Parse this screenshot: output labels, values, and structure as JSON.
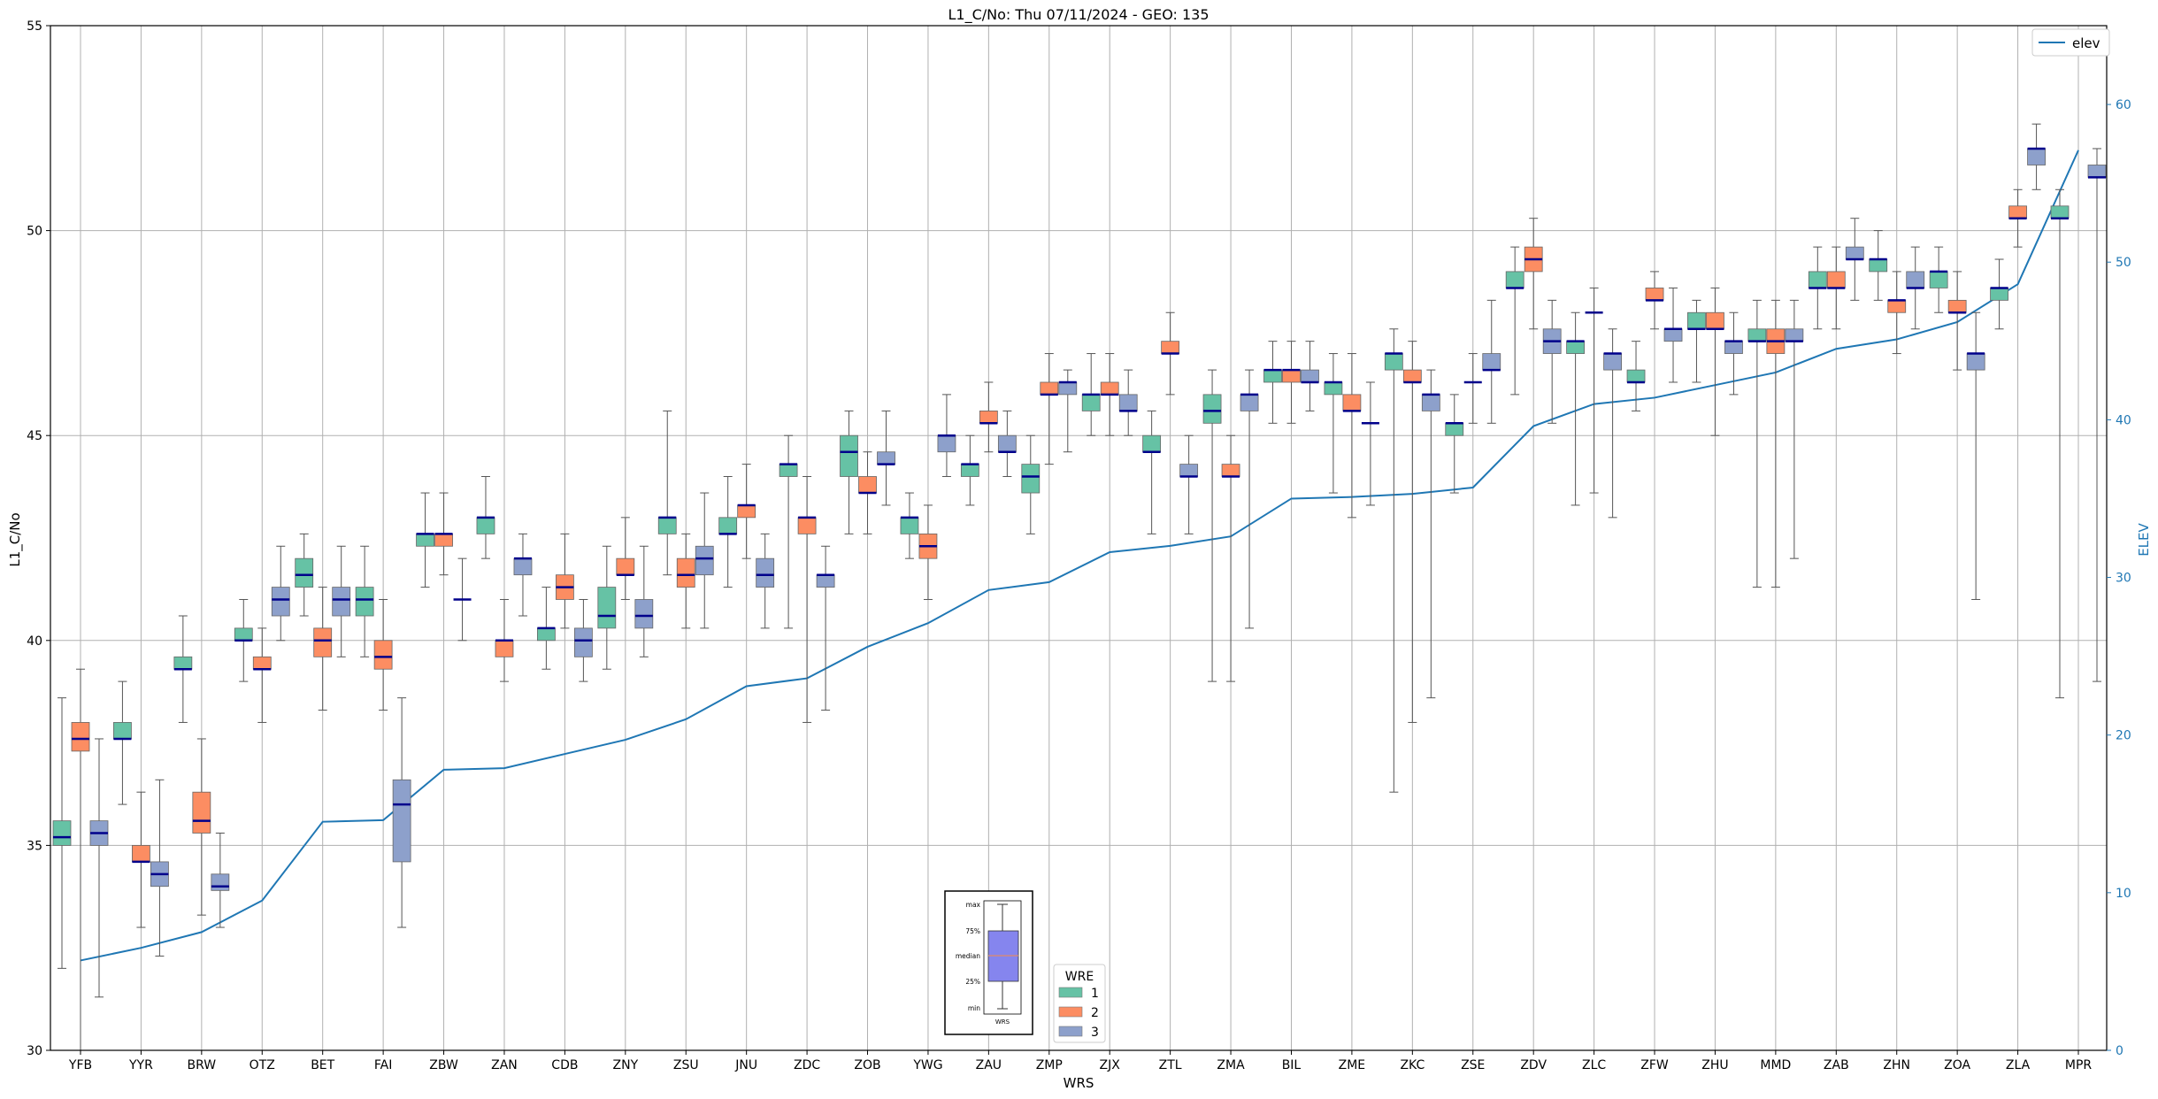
{
  "chart_data": {
    "type": "boxplot",
    "title": "L1_C/No: Thu 07/11/2024 - GEO: 135",
    "xlabel": "WRS",
    "ylabel": "L1_C/No",
    "y2label": "ELEV",
    "ylim": [
      30,
      55
    ],
    "y2lim": [
      0,
      65
    ],
    "yticks": [
      30,
      35,
      40,
      45,
      50,
      55
    ],
    "y2ticks": [
      0,
      10,
      20,
      30,
      40,
      50,
      60
    ],
    "grid": true,
    "categories": [
      "YFB",
      "YYR",
      "BRW",
      "OTZ",
      "BET",
      "FAI",
      "ZBW",
      "ZAN",
      "CDB",
      "ZNY",
      "ZSU",
      "JNU",
      "ZDC",
      "ZOB",
      "YWG",
      "ZAU",
      "ZMP",
      "ZJX",
      "ZTL",
      "ZMA",
      "BIL",
      "ZME",
      "ZKC",
      "ZSE",
      "ZDV",
      "ZLC",
      "ZFW",
      "ZHU",
      "MMD",
      "ZAB",
      "ZHN",
      "ZOA",
      "ZLA",
      "MPR"
    ],
    "colors": {
      "wre1": "#66c2a5",
      "wre2": "#fc8d62",
      "wre3": "#8da0cb",
      "median": "#00008b",
      "elev": "#1f77b4",
      "grid": "#b0b0b0",
      "whisker": "#555555"
    },
    "box_legend": {
      "title": "WRE",
      "placement": "bottom-center",
      "entries": [
        "1",
        "2",
        "3"
      ]
    },
    "line_legend": {
      "placement": "top-right",
      "entries": [
        "elev"
      ]
    },
    "key_inset": {
      "labels": [
        "max",
        "75%",
        "median",
        "25%",
        "min"
      ],
      "xlabel": "WRS"
    },
    "elev_series": {
      "name": "elev",
      "values": [
        5.7,
        6.5,
        7.5,
        9.5,
        14.5,
        14.6,
        17.8,
        17.9,
        18.8,
        19.7,
        21.0,
        23.1,
        23.6,
        25.6,
        27.1,
        29.2,
        29.7,
        31.6,
        32.0,
        32.6,
        35.0,
        35.1,
        35.3,
        35.7,
        39.6,
        41.0,
        41.4,
        42.2,
        43.0,
        44.5,
        45.1,
        46.2,
        48.6,
        57.1
      ]
    },
    "boxes": [
      {
        "wrs": "YFB",
        "wre": 1,
        "min": 32.0,
        "q1": 35.0,
        "median": 35.2,
        "q3": 35.6,
        "max": 38.6
      },
      {
        "wrs": "YFB",
        "wre": 2,
        "min": 30.0,
        "q1": 37.3,
        "median": 37.6,
        "q3": 38.0,
        "max": 39.3
      },
      {
        "wrs": "YFB",
        "wre": 3,
        "min": 31.3,
        "q1": 35.0,
        "median": 35.3,
        "q3": 35.6,
        "max": 37.6
      },
      {
        "wrs": "YYR",
        "wre": 1,
        "min": 36.0,
        "q1": 37.6,
        "median": 37.6,
        "q3": 38.0,
        "max": 39.0
      },
      {
        "wrs": "YYR",
        "wre": 2,
        "min": 33.0,
        "q1": 34.6,
        "median": 34.6,
        "q3": 35.0,
        "max": 36.3
      },
      {
        "wrs": "YYR",
        "wre": 3,
        "min": 32.3,
        "q1": 34.0,
        "median": 34.3,
        "q3": 34.6,
        "max": 36.6
      },
      {
        "wrs": "BRW",
        "wre": 1,
        "min": 38.0,
        "q1": 39.3,
        "median": 39.3,
        "q3": 39.6,
        "max": 40.6
      },
      {
        "wrs": "BRW",
        "wre": 2,
        "min": 33.3,
        "q1": 35.3,
        "median": 35.6,
        "q3": 36.3,
        "max": 37.6
      },
      {
        "wrs": "BRW",
        "wre": 3,
        "min": 33.0,
        "q1": 33.9,
        "median": 34.0,
        "q3": 34.3,
        "max": 35.3
      },
      {
        "wrs": "OTZ",
        "wre": 1,
        "min": 39.0,
        "q1": 40.0,
        "median": 40.0,
        "q3": 40.3,
        "max": 41.0
      },
      {
        "wrs": "OTZ",
        "wre": 2,
        "min": 38.0,
        "q1": 39.3,
        "median": 39.3,
        "q3": 39.6,
        "max": 40.3
      },
      {
        "wrs": "OTZ",
        "wre": 3,
        "min": 40.0,
        "q1": 40.6,
        "median": 41.0,
        "q3": 41.3,
        "max": 42.3
      },
      {
        "wrs": "BET",
        "wre": 1,
        "min": 40.6,
        "q1": 41.3,
        "median": 41.6,
        "q3": 42.0,
        "max": 42.6
      },
      {
        "wrs": "BET",
        "wre": 2,
        "min": 38.3,
        "q1": 39.6,
        "median": 40.0,
        "q3": 40.3,
        "max": 41.3
      },
      {
        "wrs": "BET",
        "wre": 3,
        "min": 39.6,
        "q1": 40.6,
        "median": 41.0,
        "q3": 41.3,
        "max": 42.3
      },
      {
        "wrs": "FAI",
        "wre": 1,
        "min": 39.6,
        "q1": 40.6,
        "median": 41.0,
        "q3": 41.3,
        "max": 42.3
      },
      {
        "wrs": "FAI",
        "wre": 2,
        "min": 38.3,
        "q1": 39.3,
        "median": 39.6,
        "q3": 40.0,
        "max": 41.0
      },
      {
        "wrs": "FAI",
        "wre": 3,
        "min": 33.0,
        "q1": 34.6,
        "median": 36.0,
        "q3": 36.6,
        "max": 38.6
      },
      {
        "wrs": "ZBW",
        "wre": 1,
        "min": 41.3,
        "q1": 42.3,
        "median": 42.6,
        "q3": 42.6,
        "max": 43.6
      },
      {
        "wrs": "ZBW",
        "wre": 2,
        "min": 41.6,
        "q1": 42.3,
        "median": 42.6,
        "q3": 42.6,
        "max": 43.6
      },
      {
        "wrs": "ZBW",
        "wre": 3,
        "min": 40.0,
        "q1": 41.0,
        "median": 41.0,
        "q3": 41.0,
        "max": 42.0
      },
      {
        "wrs": "ZAN",
        "wre": 1,
        "min": 42.0,
        "q1": 42.6,
        "median": 43.0,
        "q3": 43.0,
        "max": 44.0
      },
      {
        "wrs": "ZAN",
        "wre": 2,
        "min": 39.0,
        "q1": 39.6,
        "median": 40.0,
        "q3": 40.0,
        "max": 41.0
      },
      {
        "wrs": "ZAN",
        "wre": 3,
        "min": 40.6,
        "q1": 41.6,
        "median": 42.0,
        "q3": 42.0,
        "max": 42.6
      },
      {
        "wrs": "CDB",
        "wre": 1,
        "min": 39.3,
        "q1": 40.0,
        "median": 40.3,
        "q3": 40.3,
        "max": 41.3
      },
      {
        "wrs": "CDB",
        "wre": 2,
        "min": 40.3,
        "q1": 41.0,
        "median": 41.3,
        "q3": 41.6,
        "max": 42.6
      },
      {
        "wrs": "CDB",
        "wre": 3,
        "min": 39.0,
        "q1": 39.6,
        "median": 40.0,
        "q3": 40.3,
        "max": 41.0
      },
      {
        "wrs": "ZNY",
        "wre": 1,
        "min": 39.3,
        "q1": 40.3,
        "median": 40.6,
        "q3": 41.3,
        "max": 42.3
      },
      {
        "wrs": "ZNY",
        "wre": 2,
        "min": 41.0,
        "q1": 41.6,
        "median": 41.6,
        "q3": 42.0,
        "max": 43.0
      },
      {
        "wrs": "ZNY",
        "wre": 3,
        "min": 39.6,
        "q1": 40.3,
        "median": 40.6,
        "q3": 41.0,
        "max": 42.3
      },
      {
        "wrs": "ZSU",
        "wre": 1,
        "min": 41.6,
        "q1": 42.6,
        "median": 43.0,
        "q3": 43.0,
        "max": 45.6
      },
      {
        "wrs": "ZSU",
        "wre": 2,
        "min": 40.3,
        "q1": 41.3,
        "median": 41.6,
        "q3": 42.0,
        "max": 42.6
      },
      {
        "wrs": "ZSU",
        "wre": 3,
        "min": 40.3,
        "q1": 41.6,
        "median": 42.0,
        "q3": 42.3,
        "max": 43.6
      },
      {
        "wrs": "JNU",
        "wre": 1,
        "min": 41.3,
        "q1": 42.6,
        "median": 42.6,
        "q3": 43.0,
        "max": 44.0
      },
      {
        "wrs": "JNU",
        "wre": 2,
        "min": 42.0,
        "q1": 43.0,
        "median": 43.3,
        "q3": 43.3,
        "max": 44.3
      },
      {
        "wrs": "JNU",
        "wre": 3,
        "min": 40.3,
        "q1": 41.3,
        "median": 41.6,
        "q3": 42.0,
        "max": 42.6
      },
      {
        "wrs": "ZDC",
        "wre": 1,
        "min": 40.3,
        "q1": 44.0,
        "median": 44.3,
        "q3": 44.3,
        "max": 45.0
      },
      {
        "wrs": "ZDC",
        "wre": 2,
        "min": 38.0,
        "q1": 42.6,
        "median": 43.0,
        "q3": 43.0,
        "max": 44.0
      },
      {
        "wrs": "ZDC",
        "wre": 3,
        "min": 38.3,
        "q1": 41.3,
        "median": 41.6,
        "q3": 41.6,
        "max": 42.3
      },
      {
        "wrs": "ZOB",
        "wre": 1,
        "min": 42.6,
        "q1": 44.0,
        "median": 44.6,
        "q3": 45.0,
        "max": 45.6
      },
      {
        "wrs": "ZOB",
        "wre": 2,
        "min": 42.6,
        "q1": 43.6,
        "median": 43.6,
        "q3": 44.0,
        "max": 44.6
      },
      {
        "wrs": "ZOB",
        "wre": 3,
        "min": 43.3,
        "q1": 44.3,
        "median": 44.3,
        "q3": 44.6,
        "max": 45.6
      },
      {
        "wrs": "YWG",
        "wre": 1,
        "min": 42.0,
        "q1": 42.6,
        "median": 43.0,
        "q3": 43.0,
        "max": 43.6
      },
      {
        "wrs": "YWG",
        "wre": 2,
        "min": 41.0,
        "q1": 42.0,
        "median": 42.3,
        "q3": 42.6,
        "max": 43.3
      },
      {
        "wrs": "YWG",
        "wre": 3,
        "min": 44.0,
        "q1": 44.6,
        "median": 45.0,
        "q3": 45.0,
        "max": 46.0
      },
      {
        "wrs": "ZAU",
        "wre": 1,
        "min": 43.3,
        "q1": 44.0,
        "median": 44.3,
        "q3": 44.3,
        "max": 45.0
      },
      {
        "wrs": "ZAU",
        "wre": 2,
        "min": 44.6,
        "q1": 45.3,
        "median": 45.3,
        "q3": 45.6,
        "max": 46.3
      },
      {
        "wrs": "ZAU",
        "wre": 3,
        "min": 44.0,
        "q1": 44.6,
        "median": 44.6,
        "q3": 45.0,
        "max": 45.6
      },
      {
        "wrs": "ZMP",
        "wre": 1,
        "min": 42.6,
        "q1": 43.6,
        "median": 44.0,
        "q3": 44.3,
        "max": 45.0
      },
      {
        "wrs": "ZMP",
        "wre": 2,
        "min": 44.3,
        "q1": 46.0,
        "median": 46.0,
        "q3": 46.3,
        "max": 47.0
      },
      {
        "wrs": "ZMP",
        "wre": 3,
        "min": 44.6,
        "q1": 46.0,
        "median": 46.3,
        "q3": 46.3,
        "max": 46.6
      },
      {
        "wrs": "ZJX",
        "wre": 1,
        "min": 45.0,
        "q1": 45.6,
        "median": 46.0,
        "q3": 46.0,
        "max": 47.0
      },
      {
        "wrs": "ZJX",
        "wre": 2,
        "min": 45.0,
        "q1": 46.0,
        "median": 46.0,
        "q3": 46.3,
        "max": 47.0
      },
      {
        "wrs": "ZJX",
        "wre": 3,
        "min": 45.0,
        "q1": 45.6,
        "median": 45.6,
        "q3": 46.0,
        "max": 46.6
      },
      {
        "wrs": "ZTL",
        "wre": 1,
        "min": 42.6,
        "q1": 44.6,
        "median": 44.6,
        "q3": 45.0,
        "max": 45.6
      },
      {
        "wrs": "ZTL",
        "wre": 2,
        "min": 46.0,
        "q1": 47.0,
        "median": 47.0,
        "q3": 47.3,
        "max": 48.0
      },
      {
        "wrs": "ZTL",
        "wre": 3,
        "min": 42.6,
        "q1": 44.0,
        "median": 44.0,
        "q3": 44.3,
        "max": 45.0
      },
      {
        "wrs": "ZMA",
        "wre": 1,
        "min": 39.0,
        "q1": 45.3,
        "median": 45.6,
        "q3": 46.0,
        "max": 46.6
      },
      {
        "wrs": "ZMA",
        "wre": 2,
        "min": 39.0,
        "q1": 44.0,
        "median": 44.0,
        "q3": 44.3,
        "max": 45.0
      },
      {
        "wrs": "ZMA",
        "wre": 3,
        "min": 40.3,
        "q1": 45.6,
        "median": 46.0,
        "q3": 46.0,
        "max": 46.6
      },
      {
        "wrs": "BIL",
        "wre": 1,
        "min": 45.3,
        "q1": 46.3,
        "median": 46.6,
        "q3": 46.6,
        "max": 47.3
      },
      {
        "wrs": "BIL",
        "wre": 2,
        "min": 45.3,
        "q1": 46.3,
        "median": 46.6,
        "q3": 46.6,
        "max": 47.3
      },
      {
        "wrs": "BIL",
        "wre": 3,
        "min": 45.6,
        "q1": 46.3,
        "median": 46.3,
        "q3": 46.6,
        "max": 47.3
      },
      {
        "wrs": "ZME",
        "wre": 1,
        "min": 43.6,
        "q1": 46.0,
        "median": 46.3,
        "q3": 46.3,
        "max": 47.0
      },
      {
        "wrs": "ZME",
        "wre": 2,
        "min": 43.0,
        "q1": 45.6,
        "median": 45.6,
        "q3": 46.0,
        "max": 47.0
      },
      {
        "wrs": "ZME",
        "wre": 3,
        "min": 43.3,
        "q1": 45.3,
        "median": 45.3,
        "q3": 45.3,
        "max": 46.3
      },
      {
        "wrs": "ZKC",
        "wre": 1,
        "min": 36.3,
        "q1": 46.6,
        "median": 47.0,
        "q3": 47.0,
        "max": 47.6
      },
      {
        "wrs": "ZKC",
        "wre": 2,
        "min": 38.0,
        "q1": 46.3,
        "median": 46.3,
        "q3": 46.6,
        "max": 47.3
      },
      {
        "wrs": "ZKC",
        "wre": 3,
        "min": 38.6,
        "q1": 45.6,
        "median": 46.0,
        "q3": 46.0,
        "max": 46.6
      },
      {
        "wrs": "ZSE",
        "wre": 1,
        "min": 43.6,
        "q1": 45.0,
        "median": 45.3,
        "q3": 45.3,
        "max": 46.0
      },
      {
        "wrs": "ZSE",
        "wre": 2,
        "min": 45.3,
        "q1": 46.3,
        "median": 46.3,
        "q3": 46.3,
        "max": 47.0
      },
      {
        "wrs": "ZSE",
        "wre": 3,
        "min": 45.3,
        "q1": 46.6,
        "median": 46.6,
        "q3": 47.0,
        "max": 48.3
      },
      {
        "wrs": "ZDV",
        "wre": 1,
        "min": 46.0,
        "q1": 48.6,
        "median": 48.6,
        "q3": 49.0,
        "max": 49.6
      },
      {
        "wrs": "ZDV",
        "wre": 2,
        "min": 47.6,
        "q1": 49.0,
        "median": 49.3,
        "q3": 49.6,
        "max": 50.3
      },
      {
        "wrs": "ZDV",
        "wre": 3,
        "min": 45.3,
        "q1": 47.0,
        "median": 47.3,
        "q3": 47.6,
        "max": 48.3
      },
      {
        "wrs": "ZLC",
        "wre": 1,
        "min": 43.3,
        "q1": 47.0,
        "median": 47.3,
        "q3": 47.3,
        "max": 48.0
      },
      {
        "wrs": "ZLC",
        "wre": 2,
        "min": 43.6,
        "q1": 48.0,
        "median": 48.0,
        "q3": 48.0,
        "max": 48.6
      },
      {
        "wrs": "ZLC",
        "wre": 3,
        "min": 43.0,
        "q1": 46.6,
        "median": 47.0,
        "q3": 47.0,
        "max": 47.6
      },
      {
        "wrs": "ZFW",
        "wre": 1,
        "min": 45.6,
        "q1": 46.3,
        "median": 46.3,
        "q3": 46.6,
        "max": 47.3
      },
      {
        "wrs": "ZFW",
        "wre": 2,
        "min": 47.6,
        "q1": 48.3,
        "median": 48.3,
        "q3": 48.6,
        "max": 49.0
      },
      {
        "wrs": "ZFW",
        "wre": 3,
        "min": 46.3,
        "q1": 47.3,
        "median": 47.6,
        "q3": 47.6,
        "max": 48.6
      },
      {
        "wrs": "ZHU",
        "wre": 1,
        "min": 46.3,
        "q1": 47.6,
        "median": 47.6,
        "q3": 48.0,
        "max": 48.3
      },
      {
        "wrs": "ZHU",
        "wre": 2,
        "min": 45.0,
        "q1": 47.6,
        "median": 47.6,
        "q3": 48.0,
        "max": 48.6
      },
      {
        "wrs": "ZHU",
        "wre": 3,
        "min": 46.0,
        "q1": 47.0,
        "median": 47.3,
        "q3": 47.3,
        "max": 48.0
      },
      {
        "wrs": "MMD",
        "wre": 1,
        "min": 41.3,
        "q1": 47.3,
        "median": 47.3,
        "q3": 47.6,
        "max": 48.3
      },
      {
        "wrs": "MMD",
        "wre": 2,
        "min": 41.3,
        "q1": 47.0,
        "median": 47.3,
        "q3": 47.6,
        "max": 48.3
      },
      {
        "wrs": "MMD",
        "wre": 3,
        "min": 42.0,
        "q1": 47.3,
        "median": 47.3,
        "q3": 47.6,
        "max": 48.3
      },
      {
        "wrs": "ZAB",
        "wre": 1,
        "min": 47.6,
        "q1": 48.6,
        "median": 48.6,
        "q3": 49.0,
        "max": 49.6
      },
      {
        "wrs": "ZAB",
        "wre": 2,
        "min": 47.6,
        "q1": 48.6,
        "median": 48.6,
        "q3": 49.0,
        "max": 49.6
      },
      {
        "wrs": "ZAB",
        "wre": 3,
        "min": 48.3,
        "q1": 49.3,
        "median": 49.3,
        "q3": 49.6,
        "max": 50.3
      },
      {
        "wrs": "ZHN",
        "wre": 1,
        "min": 48.3,
        "q1": 49.0,
        "median": 49.3,
        "q3": 49.3,
        "max": 50.0
      },
      {
        "wrs": "ZHN",
        "wre": 2,
        "min": 47.0,
        "q1": 48.0,
        "median": 48.3,
        "q3": 48.3,
        "max": 49.0
      },
      {
        "wrs": "ZHN",
        "wre": 3,
        "min": 47.6,
        "q1": 48.6,
        "median": 48.6,
        "q3": 49.0,
        "max": 49.6
      },
      {
        "wrs": "ZOA",
        "wre": 1,
        "min": 48.0,
        "q1": 48.6,
        "median": 49.0,
        "q3": 49.0,
        "max": 49.6
      },
      {
        "wrs": "ZOA",
        "wre": 2,
        "min": 46.6,
        "q1": 48.0,
        "median": 48.0,
        "q3": 48.3,
        "max": 49.0
      },
      {
        "wrs": "ZOA",
        "wre": 3,
        "min": 41.0,
        "q1": 46.6,
        "median": 47.0,
        "q3": 47.0,
        "max": 48.0
      },
      {
        "wrs": "ZLA",
        "wre": 1,
        "min": 47.6,
        "q1": 48.3,
        "median": 48.6,
        "q3": 48.6,
        "max": 49.3
      },
      {
        "wrs": "ZLA",
        "wre": 2,
        "min": 49.6,
        "q1": 50.3,
        "median": 50.3,
        "q3": 50.6,
        "max": 51.0
      },
      {
        "wrs": "ZLA",
        "wre": 3,
        "min": 51.0,
        "q1": 51.6,
        "median": 52.0,
        "q3": 52.0,
        "max": 52.6
      },
      {
        "wrs": "MPR",
        "wre": 1,
        "min": 38.6,
        "q1": 50.3,
        "median": 50.3,
        "q3": 50.6,
        "max": 51.0
      },
      {
        "wrs": "MPR",
        "wre": 3,
        "min": 39.0,
        "q1": 51.3,
        "median": 51.3,
        "q3": 51.6,
        "max": 52.0
      }
    ]
  }
}
